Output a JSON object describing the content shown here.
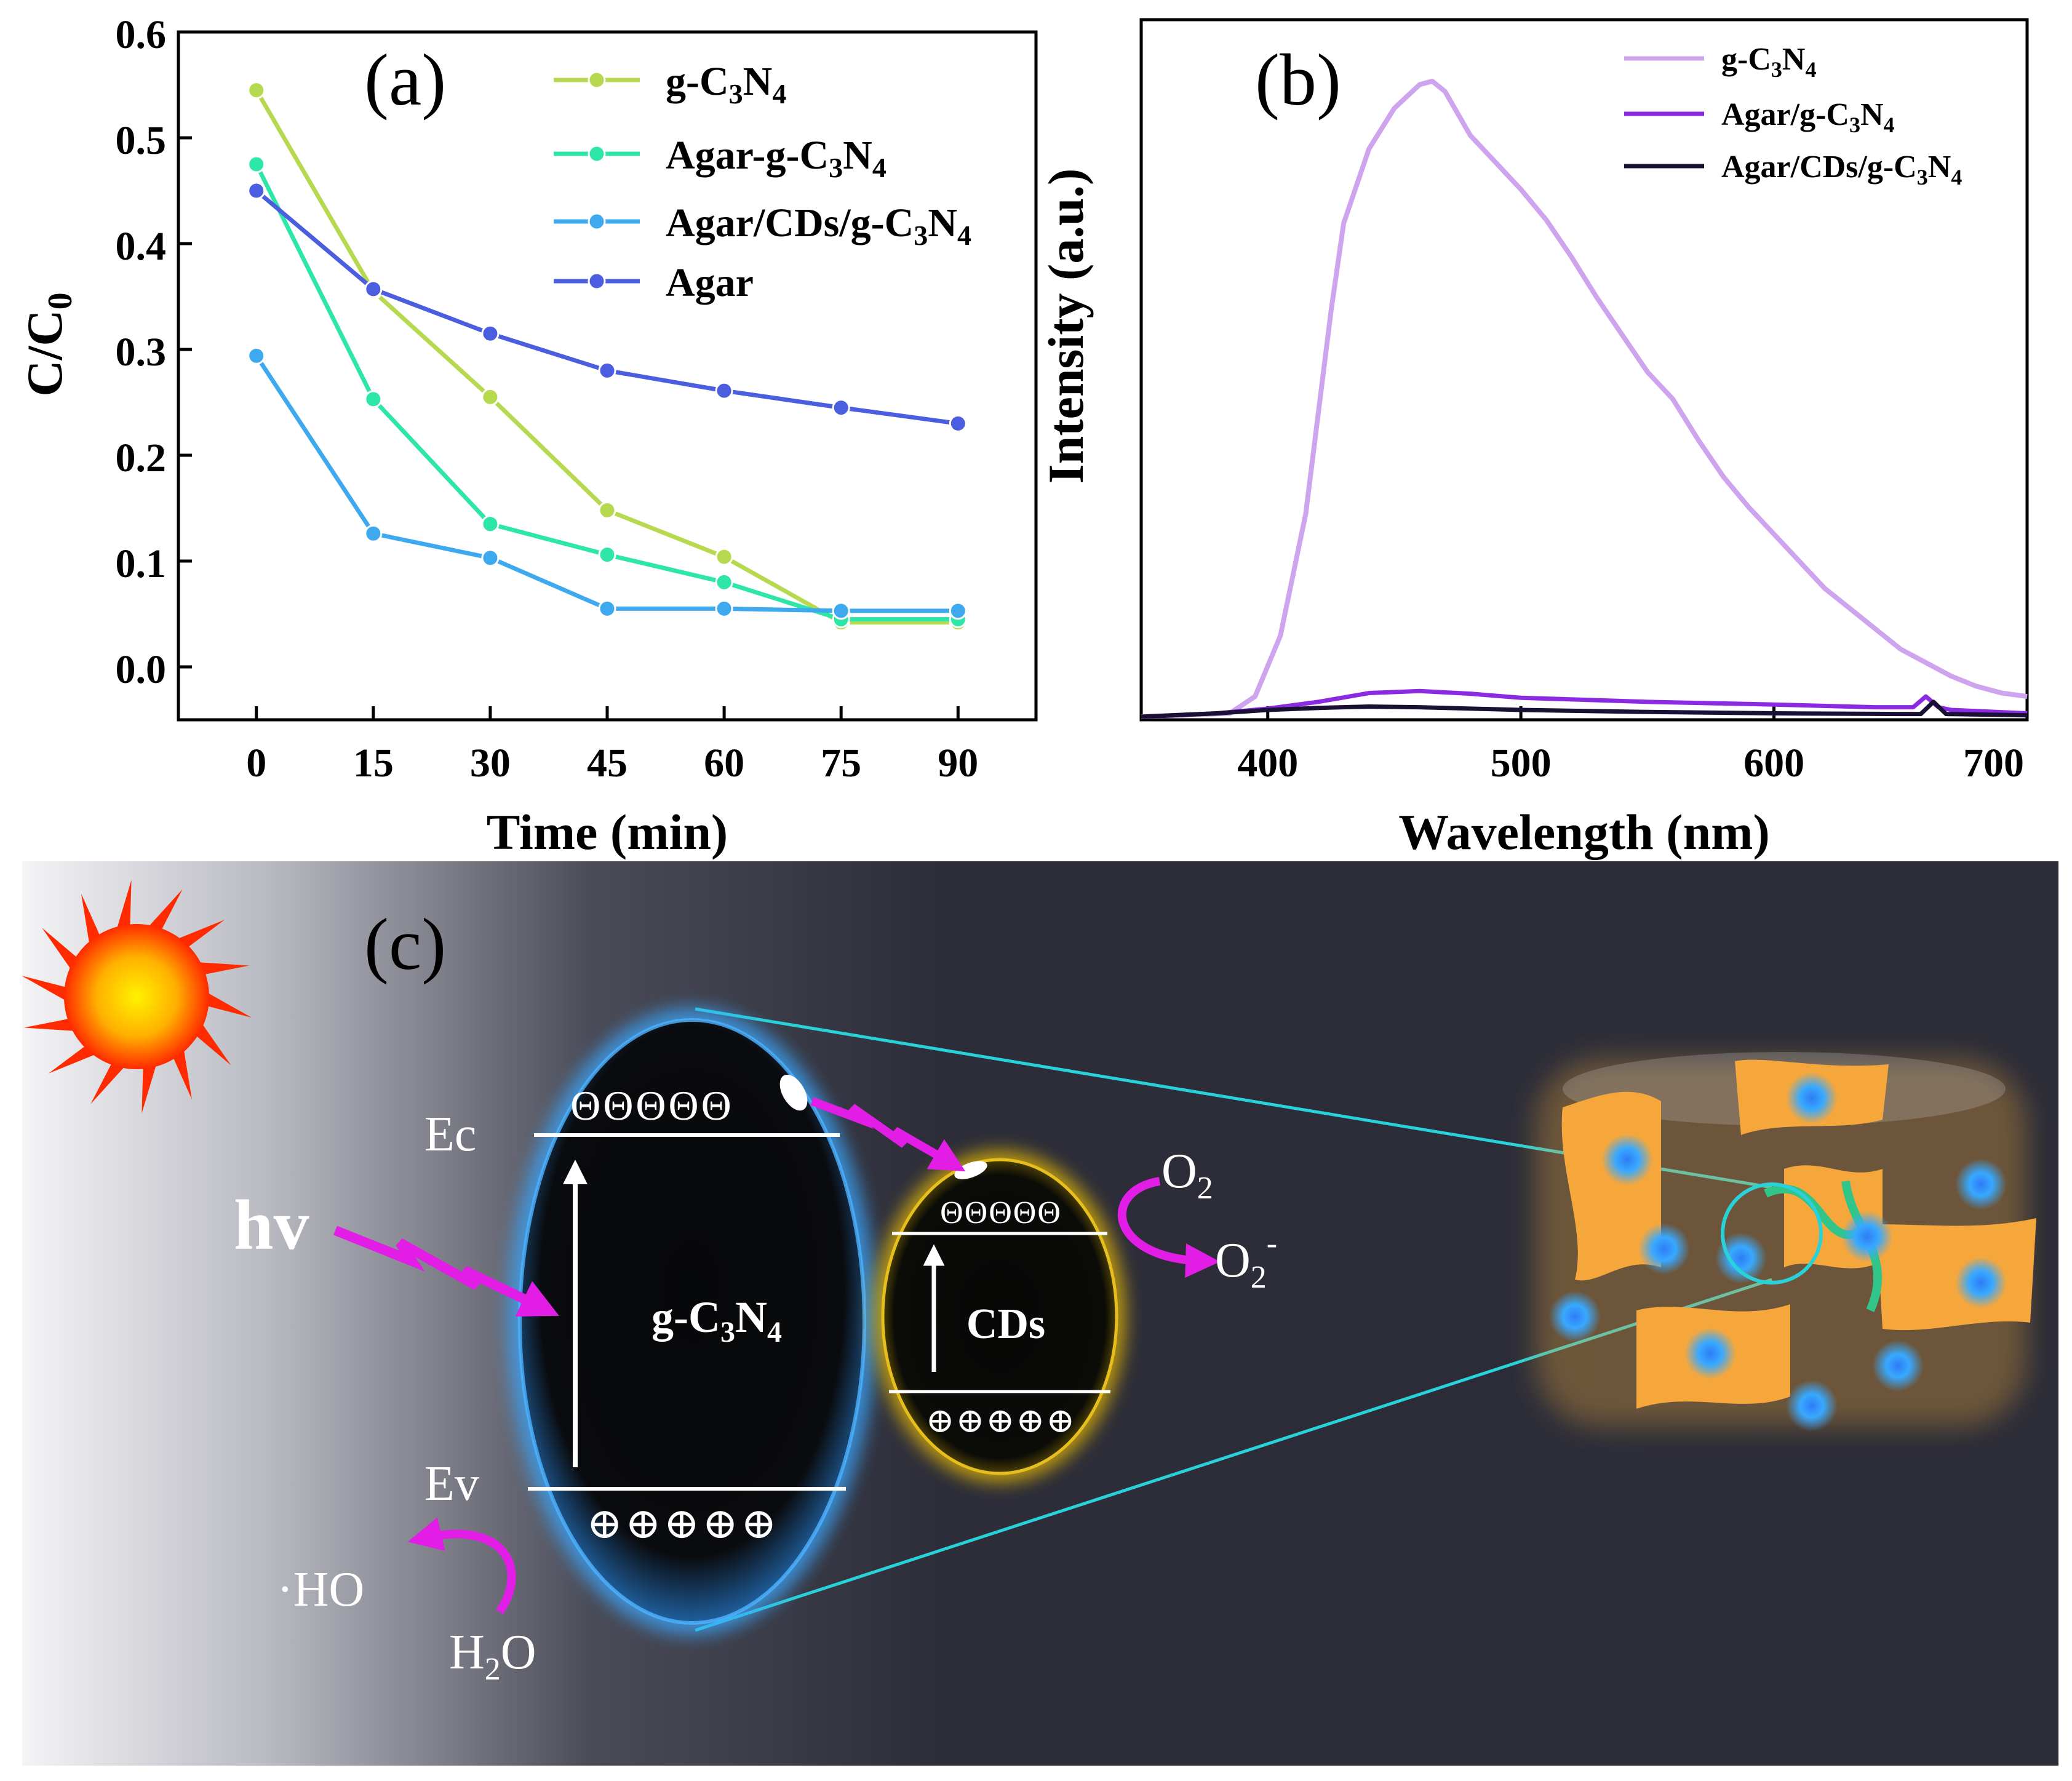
{
  "panel_labels": {
    "a": "(a)",
    "b": "(b)",
    "c": "(c)"
  },
  "colors": {
    "g_c3n4_a": "#b6d94f",
    "agar_g_c3n4_a": "#2ee6a8",
    "agar_cds_g_c3n4_a": "#3fa9ef",
    "agar_a": "#4b5ee0",
    "g_c3n4_b": "#cfa4ee",
    "agar_g_c3n4_b": "#8a2be2",
    "agar_cds_g_c3n4_b": "#1a1033",
    "arrow_magenta": "#e21ee6",
    "cyan_line": "#29d2d8",
    "cds_glow": "#f5c400",
    "gcn_glow": "#3aa7ff"
  },
  "chart_data": [
    {
      "type": "line",
      "panel": "(a)",
      "xlabel": "Time (min)",
      "ylabel": "C/C",
      "ylabel_sub": "0",
      "x": [
        0,
        15,
        30,
        45,
        60,
        75,
        90
      ],
      "xlim": [
        -10,
        100
      ],
      "ylim": [
        -0.05,
        0.6
      ],
      "xticks": [
        "0",
        "15",
        "30",
        "45",
        "60",
        "75",
        "90"
      ],
      "yticks": [
        "0.0",
        "0.1",
        "0.2",
        "0.3",
        "0.4",
        "0.5",
        "0.6"
      ],
      "series": [
        {
          "name": "g-C3N4",
          "legend": [
            "g-C",
            "3",
            "N",
            "4"
          ],
          "color": "#b6d94f",
          "values": [
            0.545,
            0.355,
            0.255,
            0.148,
            0.104,
            0.042,
            0.042
          ]
        },
        {
          "name": "Agar-g-C3N4",
          "legend": [
            "Agar-g-C",
            "3",
            "N",
            "4"
          ],
          "color": "#2ee6a8",
          "values": [
            0.475,
            0.253,
            0.135,
            0.106,
            0.08,
            0.045,
            0.045
          ]
        },
        {
          "name": "Agar/CDs/g-C3N4",
          "legend": [
            "Agar/CDs/g-C",
            "3",
            "N",
            "4"
          ],
          "color": "#3fa9ef",
          "values": [
            0.294,
            0.126,
            0.103,
            0.055,
            0.055,
            0.053,
            0.053
          ]
        },
        {
          "name": "Agar",
          "legend": [
            "Agar"
          ],
          "color": "#4b5ee0",
          "values": [
            0.45,
            0.357,
            0.315,
            0.28,
            0.261,
            0.245,
            0.23
          ]
        }
      ],
      "legend_position": "top-right",
      "grid": false
    },
    {
      "type": "line",
      "panel": "(b)",
      "xlabel": "Wavelength (nm)",
      "ylabel": "Intensity (a.u.)",
      "xlim": [
        350,
        700
      ],
      "ylim": [
        0,
        1.0
      ],
      "xticks": [
        "400",
        "500",
        "600",
        "700"
      ],
      "series": [
        {
          "name": "g-C3N4",
          "legend": [
            "g-C",
            "3",
            "N",
            "4"
          ],
          "color": "#cfa4ee",
          "x": [
            350,
            385,
            395,
            405,
            415,
            420,
            425,
            430,
            440,
            450,
            460,
            465,
            470,
            480,
            490,
            500,
            510,
            520,
            530,
            540,
            550,
            560,
            570,
            580,
            590,
            600,
            610,
            620,
            630,
            640,
            650,
            660,
            670,
            680,
            690,
            700
          ],
          "values": [
            0.0,
            0.005,
            0.03,
            0.12,
            0.3,
            0.45,
            0.6,
            0.73,
            0.84,
            0.9,
            0.935,
            0.94,
            0.925,
            0.86,
            0.82,
            0.78,
            0.735,
            0.68,
            0.62,
            0.565,
            0.51,
            0.47,
            0.41,
            0.355,
            0.31,
            0.27,
            0.23,
            0.19,
            0.16,
            0.13,
            0.1,
            0.08,
            0.06,
            0.045,
            0.035,
            0.03
          ]
        },
        {
          "name": "Agar/g-C3N4",
          "legend": [
            "Agar/g-C",
            "3",
            "N",
            "4"
          ],
          "color": "#8a2be2",
          "x": [
            350,
            380,
            400,
            420,
            440,
            460,
            480,
            500,
            550,
            600,
            640,
            655,
            660,
            665,
            670,
            700
          ],
          "values": [
            0.0,
            0.005,
            0.012,
            0.022,
            0.035,
            0.038,
            0.034,
            0.028,
            0.022,
            0.018,
            0.014,
            0.014,
            0.03,
            0.014,
            0.01,
            0.005
          ]
        },
        {
          "name": "Agar/CDs/g-C3N4",
          "legend": [
            "Agar/CDs/g-C",
            "3",
            "N",
            "4"
          ],
          "color": "#1a1033",
          "x": [
            350,
            380,
            400,
            420,
            440,
            460,
            480,
            500,
            550,
            600,
            650,
            658,
            663,
            668,
            700
          ],
          "values": [
            0.0,
            0.005,
            0.01,
            0.013,
            0.015,
            0.014,
            0.012,
            0.01,
            0.007,
            0.005,
            0.004,
            0.004,
            0.022,
            0.004,
            0.002
          ]
        }
      ],
      "legend_position": "top-right",
      "grid": false
    }
  ],
  "schematic": {
    "ec": "Ec",
    "ev": "Ev",
    "hv": "hv",
    "electrons_gcn": "ΘΘΘΘΘ",
    "holes_gcn": "⊕⊕⊕⊕⊕",
    "electrons_cds": "ΘΘΘΘΘ",
    "holes_cds": "⊕⊕⊕⊕⊕",
    "gcn_label": [
      "g-C",
      "3",
      "N",
      "4"
    ],
    "cds_label": "CDs",
    "o2": [
      "O",
      "2"
    ],
    "o2_minus": [
      "O",
      "2",
      "-"
    ],
    "ho": "·HO",
    "h2o": [
      "H",
      "2",
      "O"
    ]
  }
}
